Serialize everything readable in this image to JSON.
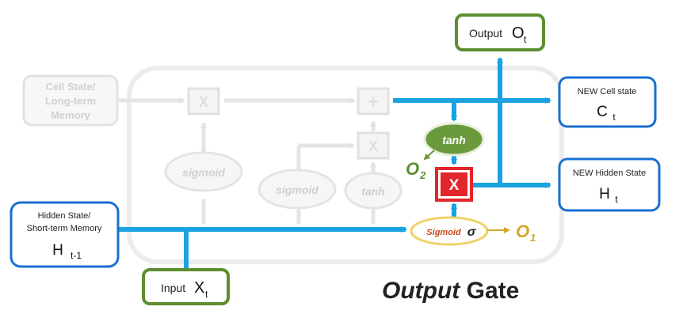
{
  "inputs": {
    "cell_state": [
      "Cell State/",
      "Long-term",
      "Memory"
    ],
    "hidden_state": [
      "Hidden State/",
      "Short-term  Memory"
    ],
    "hidden_symbol": "H",
    "hidden_sub": "t-1",
    "input_label": "Input ",
    "input_symbol": "X",
    "input_sub": "t"
  },
  "outputs": {
    "output_label": "Output ",
    "output_symbol": "O",
    "output_sub": "t",
    "new_cell_label": "NEW Cell state",
    "new_cell_symbol": "C",
    "new_cell_sub": "t",
    "new_hidden_label": "NEW Hidden State",
    "new_hidden_symbol": "H",
    "new_hidden_sub": "t"
  },
  "ops": {
    "multiply": "X",
    "add": "+",
    "sigmoid": "sigmoid",
    "tanh": "tanh",
    "active_tanh": "tanh",
    "active_sigmoid": "Sigmoid",
    "sigma": "σ",
    "active_multiply": "X"
  },
  "gate_values": {
    "o1": "O",
    "o1_sub": "1",
    "o2": "O",
    "o2_sub": "2"
  },
  "caption": {
    "italic": "Output",
    "rest": " Gate"
  },
  "colors": {
    "flow": "#1aa3e0",
    "box_border": "#1a6fd1",
    "green_border": "#5e8e2f",
    "faded": "#d9d9d9",
    "gold": "#d4a72c",
    "red": "#e3262b"
  }
}
